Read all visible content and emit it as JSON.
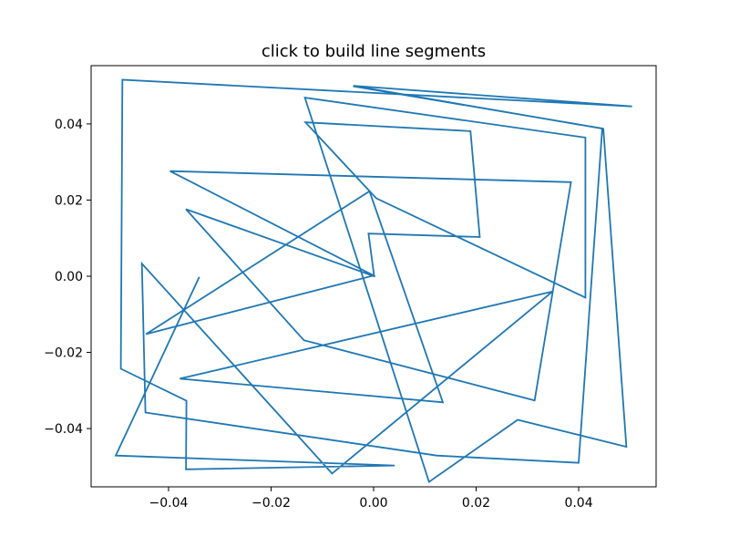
{
  "chart_data": {
    "type": "line",
    "title": "click to build line segments",
    "xlabel": "",
    "ylabel": "",
    "xlim": [
      -0.0551,
      0.0551
    ],
    "ylim": [
      -0.0553,
      0.0553
    ],
    "grid": false,
    "xticks": [
      -0.04,
      -0.02,
      0.0,
      0.02,
      0.04
    ],
    "xtick_labels": [
      "−0.04",
      "−0.02",
      "0.00",
      "0.02",
      "0.04"
    ],
    "yticks": [
      -0.04,
      -0.02,
      0.0,
      0.02,
      0.04
    ],
    "ytick_labels": [
      "−0.04",
      "−0.02",
      "0.00",
      "0.02",
      "0.04"
    ],
    "line_color": "#1f77b4",
    "series": [
      {
        "points": [
          [
            -0.034,
            -0.0002
          ],
          [
            -0.0503,
            -0.0471
          ],
          [
            0.0041,
            -0.0497
          ],
          [
            -0.0366,
            -0.0507
          ],
          [
            -0.0365,
            -0.0327
          ],
          [
            -0.0493,
            -0.0243
          ],
          [
            -0.049,
            0.0516
          ],
          [
            0.0504,
            0.0446
          ],
          [
            -0.0039,
            0.05
          ],
          [
            0.0448,
            0.0387
          ],
          [
            0.0493,
            -0.0448
          ],
          [
            0.0281,
            -0.0377
          ],
          [
            0.0108,
            -0.054
          ],
          [
            -0.0134,
            0.0469
          ],
          [
            0.0413,
            0.0364
          ],
          [
            0.0413,
            -0.0056
          ],
          [
            0.0005,
            0.0205
          ],
          [
            -0.0133,
            0.0404
          ],
          [
            0.0189,
            0.0381
          ],
          [
            0.0207,
            0.0103
          ],
          [
            -0.001,
            0.0112
          ],
          [
            0.0001,
            0.0
          ],
          [
            -0.0366,
            0.0176
          ],
          [
            -0.0136,
            -0.0168
          ],
          [
            0.0314,
            -0.0326
          ],
          [
            0.0385,
            0.0247
          ],
          [
            -0.0397,
            0.0276
          ],
          [
            0.0,
            0.0002
          ],
          [
            -0.0444,
            -0.0152
          ],
          [
            -0.0008,
            0.0223
          ],
          [
            0.0135,
            -0.0331
          ],
          [
            -0.0378,
            -0.0269
          ],
          [
            0.0349,
            -0.004
          ],
          [
            -0.0081,
            -0.0518
          ],
          [
            -0.0452,
            0.0033
          ],
          [
            -0.0445,
            -0.0358
          ],
          [
            0.0123,
            -0.0471
          ],
          [
            0.04,
            -0.049
          ],
          [
            0.0446,
            0.0388
          ],
          [
            -0.004,
            0.0499
          ]
        ]
      }
    ]
  }
}
